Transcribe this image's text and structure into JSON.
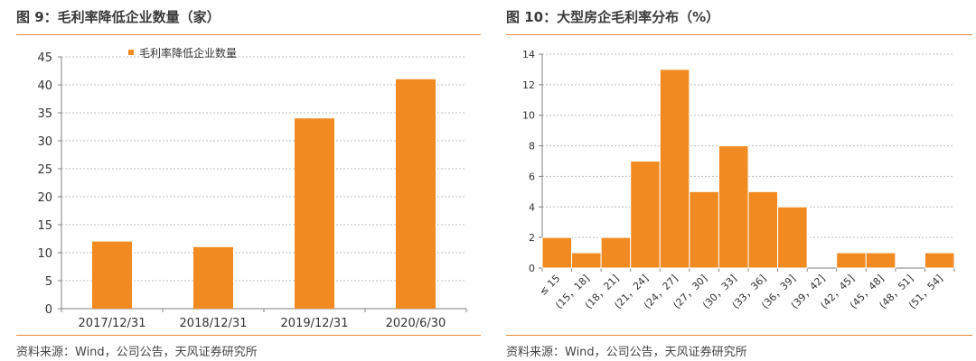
{
  "left_panel": {
    "title": "图 9：毛利率降低企业数量（家）",
    "source": "资料来源：Wind，公司公告，天风证券研究所"
  },
  "right_panel": {
    "title": "图 10：大型房企毛利率分布（%）",
    "source": "资料来源：Wind，公司公告，天风证券研究所"
  },
  "colors": {
    "bar": "#f28a22",
    "accent_rule": "#e98a3e",
    "grid": "#bfbfbf",
    "axis": "#808080"
  },
  "chart_data": [
    {
      "type": "bar",
      "title": "",
      "categories": [
        "2017/12/31",
        "2018/12/31",
        "2019/12/31",
        "2020/6/30"
      ],
      "series": [
        {
          "name": "毛利率降低企业数量",
          "values": [
            12,
            11,
            34,
            41
          ]
        }
      ],
      "ylim": [
        0,
        45
      ],
      "yticks": [
        0,
        5,
        10,
        15,
        20,
        25,
        30,
        35,
        40,
        45
      ],
      "xlabel": "",
      "ylabel": "",
      "grid": true,
      "legend": "top"
    },
    {
      "type": "bar",
      "title": "",
      "categories": [
        "≤ 15",
        "(15，18]",
        "(18，21]",
        "(21，24]",
        "(24，27]",
        "(27，30]",
        "(30，33]",
        "(33，36]",
        "(36，39]",
        "(39，42]",
        "(42，45]",
        "(45，48]",
        "(48，51]",
        "(51，54]"
      ],
      "values": [
        2,
        1,
        2,
        7,
        13,
        5,
        8,
        5,
        4,
        0,
        1,
        1,
        0,
        1
      ],
      "ylim": [
        0,
        14
      ],
      "yticks": [
        0,
        2,
        4,
        6,
        8,
        10,
        12,
        14
      ],
      "xlabel": "",
      "ylabel": "",
      "grid": true,
      "legend": "none"
    }
  ]
}
